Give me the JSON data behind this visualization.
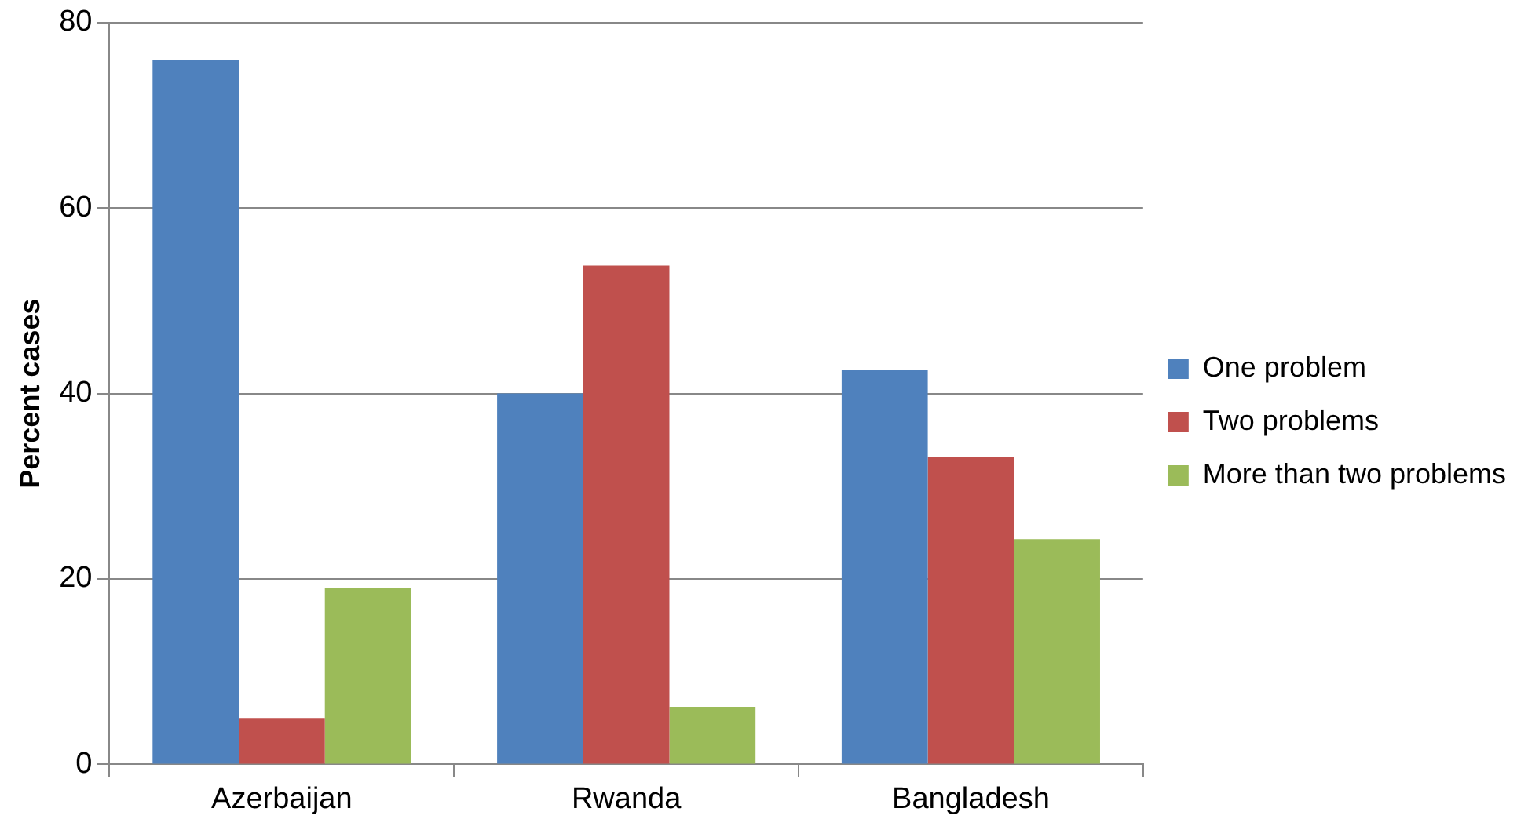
{
  "chart_data": {
    "type": "bar",
    "ylabel": "Percent cases",
    "categories": [
      "Azerbaijan",
      "Rwanda",
      "Bangladesh"
    ],
    "series": [
      {
        "name": "One problem",
        "color": "#4f81bd",
        "values": [
          76,
          40,
          42.5
        ]
      },
      {
        "name": "Two problems",
        "color": "#c0504d",
        "values": [
          5,
          53.8,
          33.2
        ]
      },
      {
        "name": "More than two problems",
        "color": "#9bbb59",
        "values": [
          19,
          6.2,
          24.3
        ]
      }
    ],
    "ylim": [
      0,
      80
    ],
    "yticks": [
      0,
      20,
      40,
      60,
      80
    ],
    "grid": "y",
    "legend": "right"
  }
}
